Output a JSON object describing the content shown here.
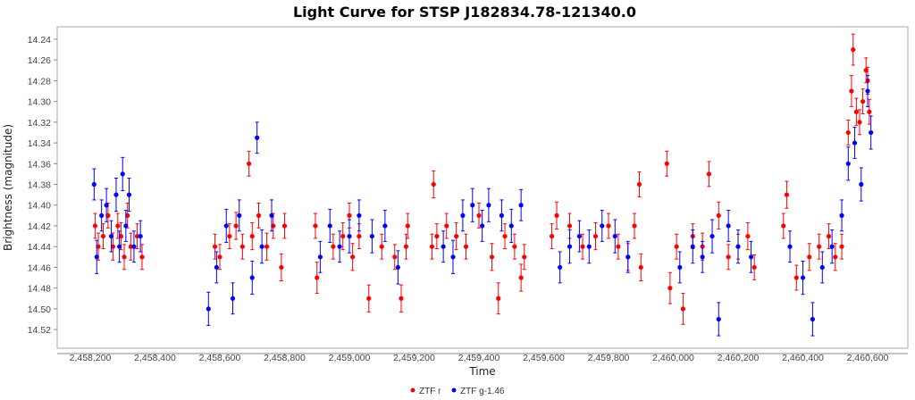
{
  "chart_data": {
    "type": "scatter",
    "title": "Light Curve for STSP J182834.78-121340.0",
    "xlabel": "Time",
    "ylabel": "Brightness (magnitude)",
    "xlim": [
      2458098,
      2460724
    ],
    "ylim": [
      14.228,
      14.538
    ],
    "y_inverted": true,
    "grid": false,
    "legend_position": "bottom-center",
    "xticks": [
      2458200,
      2458400,
      2458600,
      2458800,
      2459000,
      2459200,
      2459400,
      2459600,
      2459800,
      2460000,
      2460200,
      2460400,
      2460600
    ],
    "xtick_labels": [
      "2,458,200",
      "2,458,400",
      "2,458,600",
      "2,458,800",
      "2,459,000",
      "2,459,200",
      "2,459,400",
      "2,459,600",
      "2,459,800",
      "2,460,000",
      "2,460,200",
      "2,460,400",
      "2,460,600"
    ],
    "yticks": [
      14.24,
      14.26,
      14.28,
      14.3,
      14.32,
      14.34,
      14.36,
      14.38,
      14.4,
      14.42,
      14.44,
      14.46,
      14.48,
      14.5,
      14.52
    ],
    "ytick_labels": [
      "14.24",
      "14.26",
      "14.28",
      "14.30",
      "14.32",
      "14.34",
      "14.36",
      "14.38",
      "14.40",
      "14.42",
      "14.44",
      "14.46",
      "14.48",
      "14.50",
      "14.52"
    ],
    "series": [
      {
        "name": "ZTF r",
        "color": "#ff0000",
        "points": [
          [
            2458215,
            14.42,
            0.012
          ],
          [
            2458225,
            14.44,
            0.013
          ],
          [
            2458240,
            14.43,
            0.012
          ],
          [
            2458255,
            14.41,
            0.012
          ],
          [
            2458270,
            14.44,
            0.013
          ],
          [
            2458285,
            14.42,
            0.012
          ],
          [
            2458295,
            14.43,
            0.013
          ],
          [
            2458305,
            14.45,
            0.012
          ],
          [
            2458315,
            14.41,
            0.012
          ],
          [
            2458325,
            14.44,
            0.013
          ],
          [
            2458345,
            14.43,
            0.012
          ],
          [
            2458360,
            14.45,
            0.012
          ],
          [
            2458585,
            14.44,
            0.012
          ],
          [
            2458600,
            14.45,
            0.012
          ],
          [
            2458630,
            14.43,
            0.012
          ],
          [
            2458650,
            14.42,
            0.013
          ],
          [
            2458670,
            14.44,
            0.012
          ],
          [
            2458690,
            14.36,
            0.012
          ],
          [
            2458700,
            14.43,
            0.013
          ],
          [
            2458720,
            14.41,
            0.012
          ],
          [
            2458745,
            14.44,
            0.013
          ],
          [
            2458765,
            14.42,
            0.012
          ],
          [
            2458790,
            14.46,
            0.013
          ],
          [
            2458800,
            14.42,
            0.012
          ],
          [
            2458895,
            14.42,
            0.012
          ],
          [
            2458900,
            14.47,
            0.015
          ],
          [
            2458950,
            14.44,
            0.012
          ],
          [
            2458980,
            14.43,
            0.013
          ],
          [
            2459000,
            14.41,
            0.012
          ],
          [
            2459010,
            14.45,
            0.013
          ],
          [
            2459030,
            14.43,
            0.012
          ],
          [
            2459060,
            14.49,
            0.013
          ],
          [
            2459100,
            14.44,
            0.012
          ],
          [
            2459140,
            14.45,
            0.012
          ],
          [
            2459160,
            14.49,
            0.013
          ],
          [
            2459175,
            14.44,
            0.012
          ],
          [
            2459180,
            14.42,
            0.012
          ],
          [
            2459255,
            14.44,
            0.012
          ],
          [
            2459260,
            14.38,
            0.013
          ],
          [
            2459270,
            14.43,
            0.012
          ],
          [
            2459300,
            14.42,
            0.012
          ],
          [
            2459330,
            14.43,
            0.013
          ],
          [
            2459360,
            14.44,
            0.012
          ],
          [
            2459400,
            14.41,
            0.012
          ],
          [
            2459440,
            14.45,
            0.013
          ],
          [
            2459460,
            14.49,
            0.015
          ],
          [
            2459480,
            14.43,
            0.012
          ],
          [
            2459510,
            14.44,
            0.012
          ],
          [
            2459530,
            14.47,
            0.013
          ],
          [
            2459540,
            14.45,
            0.012
          ],
          [
            2459625,
            14.43,
            0.012
          ],
          [
            2459640,
            14.41,
            0.013
          ],
          [
            2459680,
            14.42,
            0.012
          ],
          [
            2459720,
            14.44,
            0.012
          ],
          [
            2459760,
            14.43,
            0.013
          ],
          [
            2459800,
            14.42,
            0.012
          ],
          [
            2459830,
            14.44,
            0.012
          ],
          [
            2459860,
            14.45,
            0.013
          ],
          [
            2459880,
            14.42,
            0.012
          ],
          [
            2459895,
            14.38,
            0.012
          ],
          [
            2459900,
            14.46,
            0.013
          ],
          [
            2459980,
            14.36,
            0.012
          ],
          [
            2459990,
            14.48,
            0.015
          ],
          [
            2460010,
            14.44,
            0.012
          ],
          [
            2460030,
            14.5,
            0.015
          ],
          [
            2460060,
            14.43,
            0.012
          ],
          [
            2460090,
            14.44,
            0.013
          ],
          [
            2460110,
            14.37,
            0.012
          ],
          [
            2460140,
            14.41,
            0.013
          ],
          [
            2460170,
            14.45,
            0.012
          ],
          [
            2460200,
            14.44,
            0.012
          ],
          [
            2460230,
            14.43,
            0.013
          ],
          [
            2460250,
            14.46,
            0.012
          ],
          [
            2460340,
            14.42,
            0.012
          ],
          [
            2460350,
            14.39,
            0.013
          ],
          [
            2460380,
            14.47,
            0.012
          ],
          [
            2460420,
            14.45,
            0.013
          ],
          [
            2460450,
            14.44,
            0.012
          ],
          [
            2460480,
            14.43,
            0.012
          ],
          [
            2460500,
            14.45,
            0.013
          ],
          [
            2460520,
            14.44,
            0.012
          ],
          [
            2460540,
            14.33,
            0.012
          ],
          [
            2460550,
            14.29,
            0.015
          ],
          [
            2460555,
            14.25,
            0.015
          ],
          [
            2460565,
            14.31,
            0.013
          ],
          [
            2460575,
            14.32,
            0.012
          ],
          [
            2460585,
            14.3,
            0.012
          ],
          [
            2460595,
            14.27,
            0.012
          ],
          [
            2460600,
            14.28,
            0.013
          ],
          [
            2460605,
            14.31,
            0.012
          ]
        ]
      },
      {
        "name": "ZTF g-1.46",
        "color": "#0000ff",
        "points": [
          [
            2458212,
            14.38,
            0.015
          ],
          [
            2458220,
            14.45,
            0.016
          ],
          [
            2458235,
            14.41,
            0.015
          ],
          [
            2458250,
            14.4,
            0.016
          ],
          [
            2458265,
            14.43,
            0.015
          ],
          [
            2458280,
            14.39,
            0.016
          ],
          [
            2458290,
            14.44,
            0.015
          ],
          [
            2458300,
            14.37,
            0.016
          ],
          [
            2458310,
            14.42,
            0.015
          ],
          [
            2458320,
            14.39,
            0.016
          ],
          [
            2458335,
            14.44,
            0.015
          ],
          [
            2458355,
            14.43,
            0.015
          ],
          [
            2458565,
            14.5,
            0.016
          ],
          [
            2458590,
            14.46,
            0.015
          ],
          [
            2458620,
            14.42,
            0.016
          ],
          [
            2458640,
            14.49,
            0.015
          ],
          [
            2458660,
            14.41,
            0.015
          ],
          [
            2458700,
            14.47,
            0.016
          ],
          [
            2458715,
            14.335,
            0.015
          ],
          [
            2458730,
            14.44,
            0.016
          ],
          [
            2458760,
            14.41,
            0.015
          ],
          [
            2458910,
            14.45,
            0.015
          ],
          [
            2458940,
            14.42,
            0.016
          ],
          [
            2458970,
            14.44,
            0.015
          ],
          [
            2459000,
            14.43,
            0.016
          ],
          [
            2459030,
            14.41,
            0.015
          ],
          [
            2459070,
            14.43,
            0.016
          ],
          [
            2459110,
            14.42,
            0.015
          ],
          [
            2459150,
            14.46,
            0.016
          ],
          [
            2459290,
            14.44,
            0.015
          ],
          [
            2459320,
            14.45,
            0.016
          ],
          [
            2459350,
            14.41,
            0.015
          ],
          [
            2459380,
            14.4,
            0.016
          ],
          [
            2459410,
            14.42,
            0.015
          ],
          [
            2459430,
            14.4,
            0.016
          ],
          [
            2459470,
            14.41,
            0.015
          ],
          [
            2459500,
            14.42,
            0.016
          ],
          [
            2459530,
            14.4,
            0.015
          ],
          [
            2459650,
            14.46,
            0.015
          ],
          [
            2459680,
            14.44,
            0.016
          ],
          [
            2459710,
            14.43,
            0.015
          ],
          [
            2459740,
            14.44,
            0.016
          ],
          [
            2459780,
            14.42,
            0.015
          ],
          [
            2459820,
            14.43,
            0.016
          ],
          [
            2459860,
            14.45,
            0.015
          ],
          [
            2460020,
            14.46,
            0.015
          ],
          [
            2460060,
            14.44,
            0.016
          ],
          [
            2460090,
            14.45,
            0.015
          ],
          [
            2460120,
            14.43,
            0.016
          ],
          [
            2460140,
            14.51,
            0.016
          ],
          [
            2460170,
            14.42,
            0.015
          ],
          [
            2460200,
            14.44,
            0.016
          ],
          [
            2460240,
            14.45,
            0.015
          ],
          [
            2460360,
            14.44,
            0.015
          ],
          [
            2460400,
            14.47,
            0.016
          ],
          [
            2460430,
            14.51,
            0.016
          ],
          [
            2460460,
            14.46,
            0.015
          ],
          [
            2460490,
            14.44,
            0.016
          ],
          [
            2460520,
            14.41,
            0.015
          ],
          [
            2460540,
            14.36,
            0.016
          ],
          [
            2460560,
            14.34,
            0.015
          ],
          [
            2460580,
            14.38,
            0.016
          ],
          [
            2460600,
            14.29,
            0.015
          ],
          [
            2460610,
            14.33,
            0.016
          ]
        ]
      }
    ]
  }
}
